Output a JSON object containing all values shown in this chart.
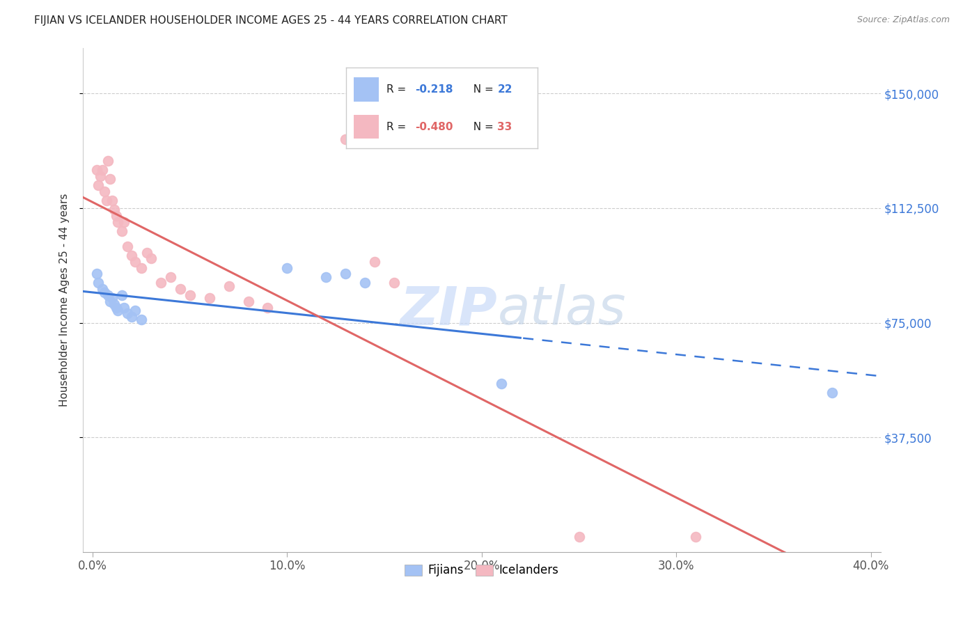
{
  "title": "FIJIAN VS ICELANDER HOUSEHOLDER INCOME AGES 25 - 44 YEARS CORRELATION CHART",
  "source": "Source: ZipAtlas.com",
  "xlabel_ticks": [
    "0.0%",
    "10.0%",
    "20.0%",
    "30.0%",
    "40.0%"
  ],
  "xlabel_tick_vals": [
    0.0,
    0.1,
    0.2,
    0.3,
    0.4
  ],
  "ylabel": "Householder Income Ages 25 - 44 years",
  "ytick_labels": [
    "$37,500",
    "$75,000",
    "$112,500",
    "$150,000"
  ],
  "ytick_vals": [
    37500,
    75000,
    112500,
    150000
  ],
  "ymin": 0,
  "ymax": 165000,
  "xmin": -0.005,
  "xmax": 0.405,
  "fijian_color": "#a4c2f4",
  "icelander_color": "#f4b8c1",
  "fijian_line_color": "#3c78d8",
  "icelander_line_color": "#e06666",
  "watermark_color": "#c9daf8",
  "fijian_x": [
    0.002,
    0.003,
    0.005,
    0.006,
    0.008,
    0.009,
    0.01,
    0.011,
    0.012,
    0.013,
    0.015,
    0.016,
    0.018,
    0.02,
    0.022,
    0.025,
    0.1,
    0.12,
    0.13,
    0.14,
    0.21,
    0.38
  ],
  "fijian_y": [
    91000,
    88000,
    86000,
    85000,
    84000,
    82000,
    83000,
    81000,
    80000,
    79000,
    84000,
    80000,
    78000,
    77000,
    79000,
    76000,
    93000,
    90000,
    91000,
    88000,
    55000,
    52000
  ],
  "icelander_x": [
    0.002,
    0.003,
    0.004,
    0.005,
    0.006,
    0.007,
    0.008,
    0.009,
    0.01,
    0.011,
    0.012,
    0.013,
    0.015,
    0.016,
    0.018,
    0.02,
    0.022,
    0.025,
    0.028,
    0.03,
    0.035,
    0.04,
    0.045,
    0.05,
    0.06,
    0.07,
    0.08,
    0.09,
    0.13,
    0.145,
    0.155,
    0.25,
    0.31
  ],
  "icelander_y": [
    125000,
    120000,
    123000,
    125000,
    118000,
    115000,
    128000,
    122000,
    115000,
    112000,
    110000,
    108000,
    105000,
    108000,
    100000,
    97000,
    95000,
    93000,
    98000,
    96000,
    88000,
    90000,
    86000,
    84000,
    83000,
    87000,
    82000,
    80000,
    135000,
    95000,
    88000,
    5000,
    5000
  ]
}
